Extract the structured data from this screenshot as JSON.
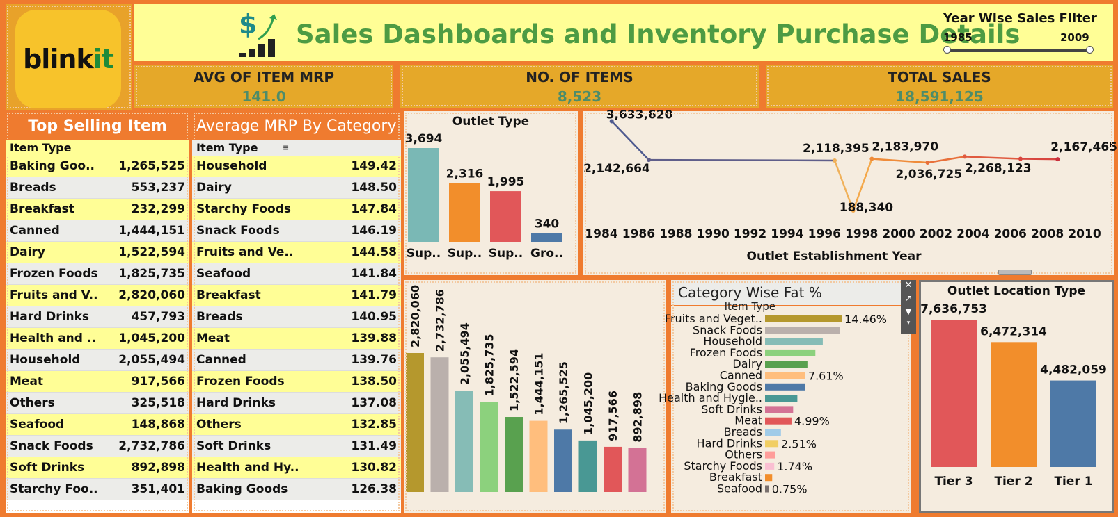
{
  "logo": {
    "brand_main": "blink",
    "brand_accent": "it"
  },
  "header": {
    "title": "Sales Dashboards and Inventory Purchase Details",
    "filter_title": "Year Wise Sales Filter",
    "filter_min": "1985",
    "filter_max": "2009"
  },
  "kpis": [
    {
      "label": "AVG OF ITEM  MRP",
      "value": "141.0"
    },
    {
      "label": "NO. OF ITEMS",
      "value": "8,523"
    },
    {
      "label": "TOTAL SALES",
      "value": "18,591,125"
    }
  ],
  "top_selling": {
    "title": "Top Selling Item",
    "col_header": "Item Type",
    "rows": [
      {
        "name": "Baking Goo..",
        "value": "1,265,525"
      },
      {
        "name": "Breads",
        "value": "553,237"
      },
      {
        "name": "Breakfast",
        "value": "232,299"
      },
      {
        "name": "Canned",
        "value": "1,444,151"
      },
      {
        "name": "Dairy",
        "value": "1,522,594"
      },
      {
        "name": "Frozen Foods",
        "value": "1,825,735"
      },
      {
        "name": "Fruits and V..",
        "value": "2,820,060"
      },
      {
        "name": "Hard Drinks",
        "value": "457,793"
      },
      {
        "name": "Health and ..",
        "value": "1,045,200"
      },
      {
        "name": "Household",
        "value": "2,055,494"
      },
      {
        "name": "Meat",
        "value": "917,566"
      },
      {
        "name": "Others",
        "value": "325,518"
      },
      {
        "name": "Seafood",
        "value": "148,868"
      },
      {
        "name": "Snack Foods",
        "value": "2,732,786"
      },
      {
        "name": "Soft Drinks",
        "value": "892,898"
      },
      {
        "name": "Starchy Foo..",
        "value": "351,401"
      }
    ]
  },
  "avg_mrp": {
    "title": "Average MRP By  Category",
    "col_header": "Item Type",
    "rows": [
      {
        "name": "Household",
        "value": "149.42"
      },
      {
        "name": "Dairy",
        "value": "148.50"
      },
      {
        "name": "Starchy Foods",
        "value": "147.84"
      },
      {
        "name": "Snack Foods",
        "value": "146.19"
      },
      {
        "name": "Fruits and Ve..",
        "value": "144.58"
      },
      {
        "name": "Seafood",
        "value": "141.84"
      },
      {
        "name": "Breakfast",
        "value": "141.79"
      },
      {
        "name": "Breads",
        "value": "140.95"
      },
      {
        "name": "Meat",
        "value": "139.88"
      },
      {
        "name": "Canned",
        "value": "139.76"
      },
      {
        "name": "Frozen Foods",
        "value": "138.50"
      },
      {
        "name": "Hard Drinks",
        "value": "137.08"
      },
      {
        "name": "Others",
        "value": "132.85"
      },
      {
        "name": "Soft Drinks",
        "value": "131.49"
      },
      {
        "name": "Health and Hy..",
        "value": "130.82"
      },
      {
        "name": "Baking Goods",
        "value": "126.38"
      }
    ]
  },
  "colors": {
    "orange": "#ef7b2f",
    "yellow": "#fffe96",
    "gold": "#e5a829",
    "green_title": "#4d9b43",
    "kpi_value": "#4e8c69"
  },
  "chart_data": [
    {
      "id": "outlet_type",
      "type": "bar",
      "title": "Outlet Type",
      "categories": [
        "Sup..",
        "Sup..",
        "Sup..",
        "Gro.."
      ],
      "values": [
        3694,
        2316,
        1995,
        340
      ],
      "labels": [
        "3,694",
        "2,316",
        "1,995",
        "340"
      ],
      "colors": [
        "#7ab8b5",
        "#f28e2b",
        "#e15759",
        "#4e79a7"
      ]
    },
    {
      "id": "establishment_trend",
      "type": "line",
      "xlabel": "Outlet Establishment Year",
      "xticks": [
        "1984",
        "1986",
        "1988",
        "1990",
        "1992",
        "1994",
        "1996",
        "1998",
        "2000",
        "2002",
        "2004",
        "2006",
        "2008",
        "2010"
      ],
      "x": [
        1985,
        1987,
        1997,
        1998,
        1999,
        2002,
        2004,
        2007,
        2009
      ],
      "y": [
        3633620,
        2142664,
        2118395,
        188340,
        2183970,
        2036725,
        2268123,
        2183970,
        2167465
      ],
      "point_labels": [
        {
          "year": 1985,
          "text": "3,633,620"
        },
        {
          "year": 1987,
          "text": "2,142,664"
        },
        {
          "year": 1997,
          "text": "2,118,395"
        },
        {
          "year": 1998,
          "text": "188,340"
        },
        {
          "year": 1999,
          "text": "2,183,970"
        },
        {
          "year": 2002,
          "text": "2,036,725"
        },
        {
          "year": 2004,
          "text": "2,268,123"
        },
        {
          "year": 2009,
          "text": "2,167,465"
        }
      ],
      "xlim": [
        1984,
        2010
      ]
    },
    {
      "id": "category_sales",
      "type": "bar",
      "values": [
        2820060,
        2732786,
        2055494,
        1825735,
        1522594,
        1444151,
        1265525,
        1045200,
        917566,
        892898
      ],
      "labels": [
        "2,820,060",
        "2,732,786",
        "2,055,494",
        "1,825,735",
        "1,522,594",
        "1,444,151",
        "1,265,525",
        "1,045,200",
        "917,566",
        "892,898"
      ],
      "colors": [
        "#b5982d",
        "#bab0ac",
        "#86bcb6",
        "#8cd17d",
        "#59a14f",
        "#ffbe7d",
        "#4e79a7",
        "#499894",
        "#e15759",
        "#d37295"
      ]
    },
    {
      "id": "fat_percent",
      "type": "bar",
      "title": "Category Wise Fat %",
      "axis_header": "Item Type",
      "categories": [
        "Fruits and Veget..",
        "Snack Foods",
        "Household",
        "Frozen Foods",
        "Dairy",
        "Canned",
        "Baking Goods",
        "Health and Hygie..",
        "Soft Drinks",
        "Meat",
        "Breads",
        "Hard Drinks",
        "Others",
        "Starchy Foods",
        "Breakfast",
        "Seafood"
      ],
      "values": [
        14.46,
        14.1,
        10.9,
        9.5,
        8.0,
        7.61,
        7.5,
        6.1,
        5.3,
        4.99,
        3.0,
        2.51,
        1.9,
        1.74,
        1.35,
        0.75
      ],
      "value_labels": {
        "0": "14.46%",
        "5": "7.61%",
        "9": "4.99%",
        "11": "2.51%",
        "13": "1.74%",
        "15": "0.75%"
      },
      "colors": [
        "#b5982d",
        "#bab0ac",
        "#86bcb6",
        "#8cd17d",
        "#59a14f",
        "#ffbe7d",
        "#4e79a7",
        "#499894",
        "#d37295",
        "#e15759",
        "#a0cbe8",
        "#f1ce63",
        "#ff9d9a",
        "#fabfd2",
        "#f28e2b",
        "#79706e"
      ]
    },
    {
      "id": "outlet_location",
      "type": "bar",
      "title": "Outlet Location Type",
      "categories": [
        "Tier 3",
        "Tier 2",
        "Tier 1"
      ],
      "values": [
        7636753,
        6472314,
        4482059
      ],
      "labels": [
        "7,636,753",
        "6,472,314",
        "4,482,059"
      ],
      "colors": [
        "#e15759",
        "#f28e2b",
        "#4e79a7"
      ]
    }
  ]
}
